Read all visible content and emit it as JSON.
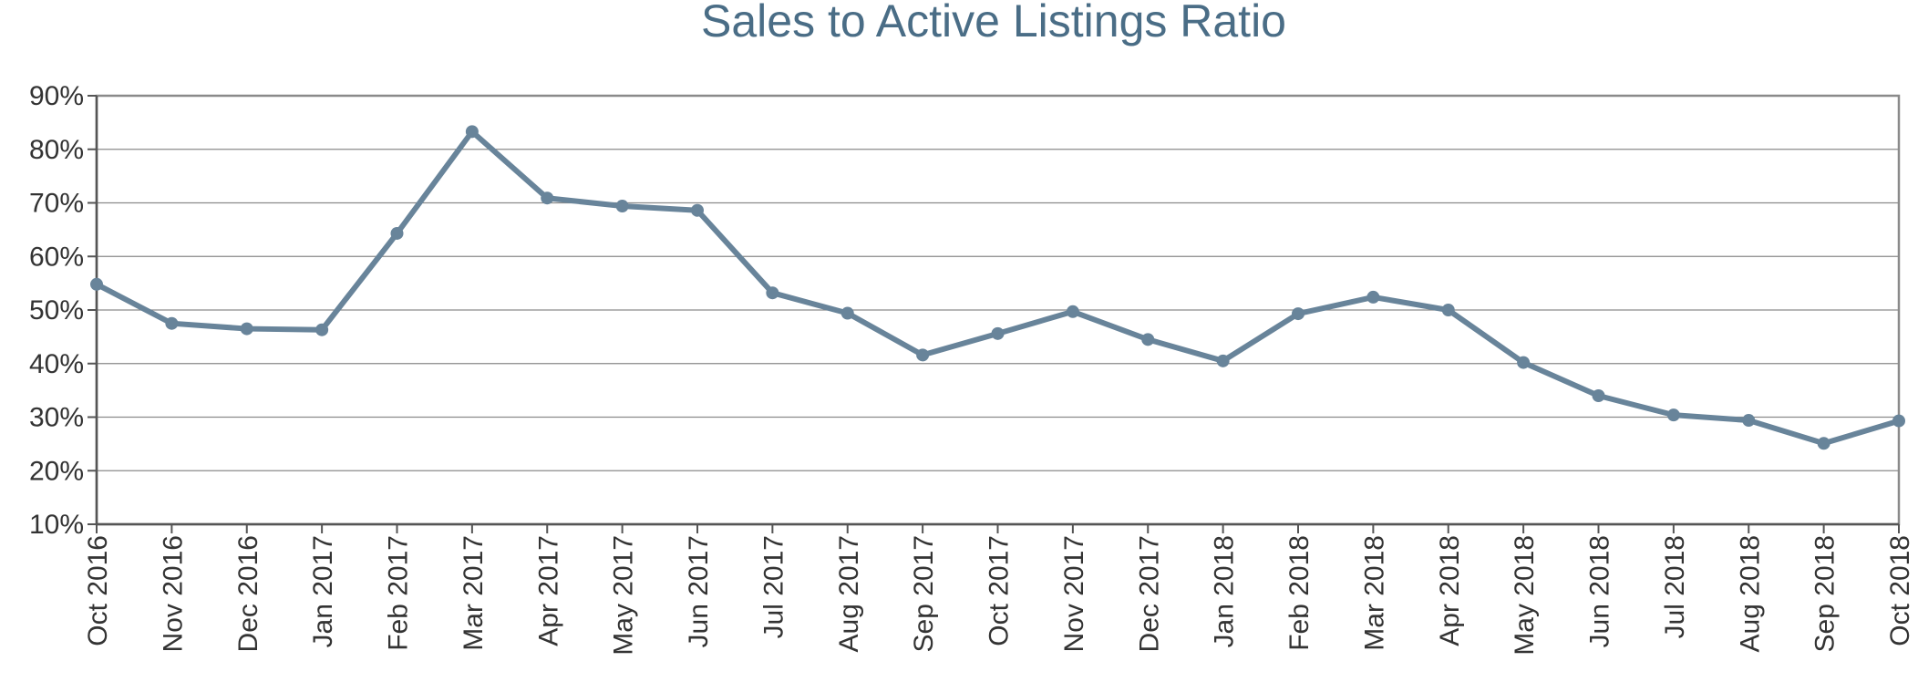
{
  "chart_data": {
    "type": "line",
    "title": "Sales to Active Listings Ratio",
    "xlabel": "",
    "ylabel": "",
    "ylim": [
      10,
      90
    ],
    "ytick_step": 10,
    "ytick_labels": [
      "10%",
      "20%",
      "30%",
      "40%",
      "50%",
      "60%",
      "70%",
      "80%",
      "90%"
    ],
    "grid": true,
    "legend": "none",
    "categories": [
      "Oct 2016",
      "Nov 2016",
      "Dec 2016",
      "Jan 2017",
      "Feb 2017",
      "Mar 2017",
      "Apr 2017",
      "May 2017",
      "Jun 2017",
      "Jul 2017",
      "Aug 2017",
      "Sep 2017",
      "Oct 2017",
      "Nov 2017",
      "Dec 2017",
      "Jan 2018",
      "Feb 2018",
      "Mar 2018",
      "Apr 2018",
      "May 2018",
      "Jun 2018",
      "Jul 2018",
      "Aug 2018",
      "Sep 2018",
      "Oct 2018"
    ],
    "series": [
      {
        "name": "Sales to Active Listings Ratio",
        "color": "#68849a",
        "values": [
          54.8,
          47.5,
          46.5,
          46.3,
          64.3,
          83.3,
          70.9,
          69.4,
          68.6,
          53.2,
          49.4,
          41.6,
          45.6,
          49.7,
          44.5,
          40.5,
          49.3,
          52.4,
          50.0,
          40.2,
          34.0,
          30.4,
          29.4,
          25.1,
          29.3
        ]
      }
    ]
  }
}
